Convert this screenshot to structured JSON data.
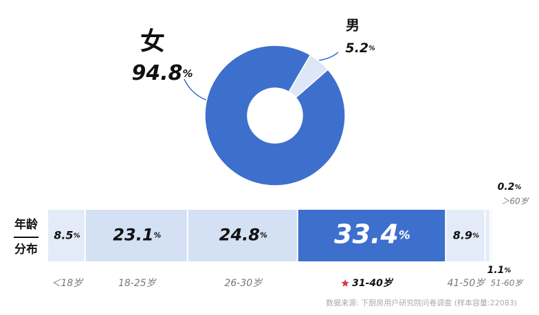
{
  "chart_data": [
    {
      "type": "pie",
      "categories": [
        "女",
        "男"
      ],
      "values": [
        94.8,
        5.2
      ],
      "value_labels": [
        "94.8%",
        "5.2%"
      ],
      "colors": [
        "#3d6fcd",
        "#dde7f7"
      ]
    },
    {
      "type": "stacked-bar",
      "axis_label": "年龄分布",
      "categories": [
        "＜18岁",
        "18-25岁",
        "26-30岁",
        "31-40岁",
        "41-50岁",
        "51-60岁",
        "＞60岁"
      ],
      "values": [
        8.5,
        23.1,
        24.8,
        33.4,
        8.9,
        1.1,
        0.2
      ],
      "value_labels": [
        "8.5%",
        "23.1%",
        "24.8%",
        "33.4%",
        "8.9%",
        "1.1%",
        "0.2%"
      ],
      "colors": [
        "#e4ebf8",
        "#d4e0f3",
        "#d4e0f3",
        "#3d6fcd",
        "#e4ebf8",
        "#e4ebf8",
        "#e4ebf8"
      ],
      "source": "数据来源: 下厨房用户研究院问卷调查 (样本容量:22083)"
    }
  ]
}
